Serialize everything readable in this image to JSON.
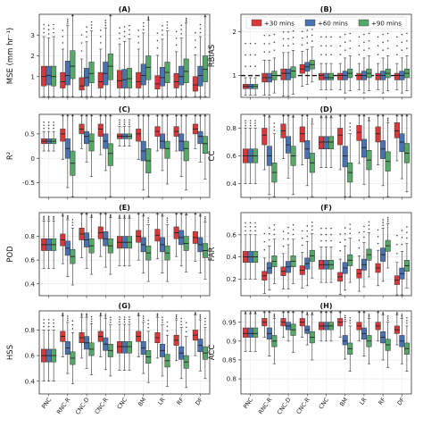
{
  "chart_data": {
    "type": "boxplot",
    "categories": [
      "PNC",
      "RNC-R",
      "CNC-D",
      "CNC-R",
      "CNC",
      "BM",
      "LR",
      "RF",
      "DF"
    ],
    "legend": {
      "entries": [
        "+30 mins",
        "+60 mins",
        "+90 mins"
      ],
      "colors": [
        "#d9383a",
        "#4a72b0",
        "#55a868"
      ],
      "placement": "top (panel B)"
    },
    "grid": true,
    "panels": [
      {
        "label": "(A)",
        "ylabel": "MSE (mm hr⁻¹)",
        "ylim": [
          0,
          4
        ],
        "yticks": [
          1,
          2,
          3
        ],
        "series": [
          {
            "name": "+30 mins",
            "medians": [
              1.0,
              0.75,
              0.55,
              0.75,
              0.8,
              0.75,
              0.65,
              0.75,
              0.6
            ],
            "q1": [
              0.55,
              0.45,
              0.35,
              0.45,
              0.45,
              0.45,
              0.4,
              0.45,
              0.3
            ],
            "q3": [
              1.5,
              1.2,
              0.95,
              1.2,
              1.3,
              1.2,
              1.05,
              1.15,
              1.0
            ]
          },
          {
            "name": "+60 mins",
            "medians": [
              1.05,
              1.05,
              0.95,
              1.15,
              0.85,
              1.05,
              0.95,
              1.0,
              1.05
            ],
            "q1": [
              0.6,
              0.6,
              0.55,
              0.6,
              0.45,
              0.6,
              0.55,
              0.6,
              0.55
            ],
            "q3": [
              1.5,
              1.75,
              1.4,
              1.7,
              1.35,
              1.6,
              1.45,
              1.5,
              1.5
            ]
          },
          {
            "name": "+90 mins",
            "medians": [
              1.0,
              1.5,
              1.15,
              1.5,
              0.9,
              1.45,
              1.2,
              1.25,
              1.35
            ],
            "q1": [
              0.55,
              0.9,
              0.7,
              0.85,
              0.45,
              0.85,
              0.7,
              0.7,
              0.75
            ],
            "q3": [
              1.5,
              2.25,
              1.7,
              2.1,
              1.4,
              2.0,
              1.7,
              1.85,
              2.0
            ]
          }
        ]
      },
      {
        "label": "(B)",
        "ylabel": "RBIAS",
        "ylim": [
          0.5,
          2.4
        ],
        "yticks": [
          1,
          2
        ],
        "reference_line": 1,
        "series": [
          {
            "name": "+30 mins",
            "medians": [
              0.75,
              0.95,
              1.05,
              1.15,
              1.0,
              1.0,
              1.0,
              1.0,
              1.0
            ],
            "q1": [
              0.7,
              0.85,
              0.9,
              1.05,
              0.9,
              0.9,
              0.9,
              0.9,
              0.9
            ],
            "q3": [
              0.8,
              1.05,
              1.15,
              1.25,
              1.05,
              1.05,
              1.05,
              1.05,
              1.05
            ]
          },
          {
            "name": "+60 mins",
            "medians": [
              0.75,
              0.95,
              1.05,
              1.2,
              0.95,
              1.0,
              1.0,
              1.0,
              1.0
            ],
            "q1": [
              0.7,
              0.85,
              0.9,
              1.1,
              0.9,
              0.9,
              0.9,
              0.9,
              0.9
            ],
            "q3": [
              0.8,
              1.05,
              1.15,
              1.3,
              1.05,
              1.1,
              1.1,
              1.1,
              1.1
            ]
          },
          {
            "name": "+90 mins",
            "medians": [
              0.75,
              1.0,
              1.1,
              1.25,
              0.95,
              1.05,
              1.05,
              1.05,
              1.05
            ],
            "q1": [
              0.7,
              0.9,
              0.95,
              1.15,
              0.9,
              0.95,
              0.95,
              0.95,
              0.95
            ],
            "q3": [
              0.8,
              1.1,
              1.2,
              1.35,
              1.05,
              1.15,
              1.15,
              1.15,
              1.15
            ]
          }
        ]
      },
      {
        "label": "(C)",
        "ylabel": "R²",
        "ylim": [
          -0.8,
          0.9
        ],
        "yticks": [
          -0.5,
          0.0,
          0.5
        ],
        "series": [
          {
            "name": "+30 mins",
            "medians": [
              0.35,
              0.5,
              0.6,
              0.6,
              0.45,
              0.5,
              0.55,
              0.55,
              0.6
            ],
            "q1": [
              0.3,
              0.35,
              0.5,
              0.45,
              0.4,
              0.35,
              0.45,
              0.45,
              0.5
            ],
            "q3": [
              0.4,
              0.6,
              0.7,
              0.7,
              0.5,
              0.6,
              0.65,
              0.65,
              0.7
            ]
          },
          {
            "name": "+60 mins",
            "medians": [
              0.35,
              0.2,
              0.45,
              0.35,
              0.45,
              0.15,
              0.35,
              0.35,
              0.45
            ],
            "q1": [
              0.3,
              0.0,
              0.3,
              0.2,
              0.4,
              -0.05,
              0.2,
              0.15,
              0.3
            ],
            "q3": [
              0.4,
              0.4,
              0.55,
              0.5,
              0.5,
              0.35,
              0.5,
              0.5,
              0.55
            ]
          },
          {
            "name": "+90 mins",
            "medians": [
              0.35,
              -0.1,
              0.35,
              0.1,
              0.45,
              -0.05,
              0.2,
              0.2,
              0.3
            ],
            "q1": [
              0.3,
              -0.35,
              0.15,
              -0.15,
              0.4,
              -0.3,
              0.0,
              -0.05,
              0.1
            ],
            "q3": [
              0.4,
              0.15,
              0.5,
              0.3,
              0.5,
              0.2,
              0.35,
              0.35,
              0.45
            ]
          }
        ]
      },
      {
        "label": "(D)",
        "ylabel": "CC",
        "ylim": [
          0.3,
          0.9
        ],
        "yticks": [
          0.4,
          0.6,
          0.8
        ],
        "series": [
          {
            "name": "+30 mins",
            "medians": [
              0.6,
              0.75,
              0.78,
              0.76,
              0.7,
              0.75,
              0.77,
              0.76,
              0.78
            ],
            "q1": [
              0.55,
              0.68,
              0.73,
              0.7,
              0.65,
              0.68,
              0.71,
              0.7,
              0.73
            ],
            "q3": [
              0.65,
              0.8,
              0.83,
              0.81,
              0.74,
              0.8,
              0.82,
              0.81,
              0.84
            ]
          },
          {
            "name": "+60 mins",
            "medians": [
              0.6,
              0.6,
              0.68,
              0.65,
              0.7,
              0.6,
              0.66,
              0.65,
              0.7
            ],
            "q1": [
              0.55,
              0.53,
              0.62,
              0.58,
              0.65,
              0.52,
              0.59,
              0.58,
              0.63
            ],
            "q3": [
              0.65,
              0.67,
              0.74,
              0.71,
              0.74,
              0.67,
              0.72,
              0.71,
              0.76
            ]
          },
          {
            "name": "+90 mins",
            "medians": [
              0.6,
              0.48,
              0.6,
              0.55,
              0.7,
              0.48,
              0.57,
              0.56,
              0.62
            ],
            "q1": [
              0.55,
              0.41,
              0.53,
              0.48,
              0.65,
              0.41,
              0.5,
              0.49,
              0.55
            ],
            "q3": [
              0.65,
              0.55,
              0.67,
              0.62,
              0.74,
              0.55,
              0.64,
              0.63,
              0.69
            ]
          }
        ]
      },
      {
        "label": "(E)",
        "ylabel": "POD",
        "ylim": [
          0.3,
          1.0
        ],
        "yticks": [
          0.4,
          0.6,
          0.8
        ],
        "series": [
          {
            "name": "+30 mins",
            "medians": [
              0.73,
              0.77,
              0.82,
              0.83,
              0.75,
              0.8,
              0.81,
              0.83,
              0.79
            ],
            "q1": [
              0.68,
              0.72,
              0.77,
              0.78,
              0.7,
              0.75,
              0.76,
              0.78,
              0.74
            ],
            "q3": [
              0.78,
              0.82,
              0.87,
              0.88,
              0.8,
              0.85,
              0.86,
              0.88,
              0.84
            ]
          },
          {
            "name": "+60 mins",
            "medians": [
              0.73,
              0.7,
              0.77,
              0.78,
              0.75,
              0.73,
              0.73,
              0.79,
              0.73
            ],
            "q1": [
              0.68,
              0.64,
              0.71,
              0.72,
              0.7,
              0.67,
              0.67,
              0.73,
              0.67
            ],
            "q3": [
              0.78,
              0.76,
              0.83,
              0.84,
              0.8,
              0.79,
              0.79,
              0.85,
              0.79
            ]
          },
          {
            "name": "+90 mins",
            "medians": [
              0.73,
              0.63,
              0.72,
              0.72,
              0.75,
              0.66,
              0.66,
              0.74,
              0.68
            ],
            "q1": [
              0.68,
              0.57,
              0.66,
              0.66,
              0.7,
              0.6,
              0.6,
              0.68,
              0.62
            ],
            "q3": [
              0.78,
              0.69,
              0.78,
              0.78,
              0.8,
              0.72,
              0.72,
              0.8,
              0.74
            ]
          }
        ]
      },
      {
        "label": "(F)",
        "ylabel": "FAR",
        "ylim": [
          0.05,
          0.8
        ],
        "yticks": [
          0.2,
          0.4,
          0.6
        ],
        "series": [
          {
            "name": "+30 mins",
            "medians": [
              0.4,
              0.23,
              0.27,
              0.28,
              0.33,
              0.22,
              0.25,
              0.3,
              0.19
            ],
            "q1": [
              0.35,
              0.19,
              0.23,
              0.24,
              0.29,
              0.18,
              0.21,
              0.26,
              0.15
            ],
            "q3": [
              0.45,
              0.27,
              0.31,
              0.32,
              0.37,
              0.26,
              0.29,
              0.34,
              0.23
            ]
          },
          {
            "name": "+60 mins",
            "medians": [
              0.4,
              0.3,
              0.31,
              0.34,
              0.33,
              0.3,
              0.33,
              0.42,
              0.25
            ],
            "q1": [
              0.35,
              0.25,
              0.26,
              0.29,
              0.29,
              0.25,
              0.28,
              0.36,
              0.2
            ],
            "q3": [
              0.45,
              0.35,
              0.36,
              0.39,
              0.37,
              0.35,
              0.38,
              0.48,
              0.3
            ]
          },
          {
            "name": "+90 mins",
            "medians": [
              0.4,
              0.36,
              0.36,
              0.41,
              0.33,
              0.37,
              0.42,
              0.5,
              0.32
            ],
            "q1": [
              0.35,
              0.31,
              0.31,
              0.36,
              0.29,
              0.32,
              0.37,
              0.45,
              0.27
            ],
            "q3": [
              0.45,
              0.41,
              0.41,
              0.46,
              0.37,
              0.42,
              0.47,
              0.55,
              0.37
            ]
          }
        ]
      },
      {
        "label": "(G)",
        "ylabel": "HSS",
        "ylim": [
          0.3,
          0.95
        ],
        "yticks": [
          0.4,
          0.6,
          0.8
        ],
        "series": [
          {
            "name": "+30 mins",
            "medians": [
              0.6,
              0.75,
              0.74,
              0.75,
              0.67,
              0.75,
              0.74,
              0.72,
              0.76
            ],
            "q1": [
              0.55,
              0.71,
              0.7,
              0.71,
              0.62,
              0.71,
              0.7,
              0.68,
              0.72
            ],
            "q3": [
              0.65,
              0.79,
              0.78,
              0.79,
              0.71,
              0.79,
              0.78,
              0.76,
              0.8
            ]
          },
          {
            "name": "+60 mins",
            "medians": [
              0.6,
              0.66,
              0.7,
              0.69,
              0.67,
              0.66,
              0.64,
              0.62,
              0.68
            ],
            "q1": [
              0.55,
              0.61,
              0.65,
              0.64,
              0.62,
              0.61,
              0.59,
              0.57,
              0.63
            ],
            "q3": [
              0.65,
              0.71,
              0.75,
              0.74,
              0.71,
              0.71,
              0.69,
              0.67,
              0.73
            ]
          },
          {
            "name": "+90 mins",
            "medians": [
              0.6,
              0.58,
              0.65,
              0.64,
              0.67,
              0.59,
              0.56,
              0.55,
              0.62
            ],
            "q1": [
              0.55,
              0.53,
              0.6,
              0.59,
              0.62,
              0.54,
              0.51,
              0.5,
              0.57
            ],
            "q3": [
              0.65,
              0.63,
              0.7,
              0.69,
              0.71,
              0.64,
              0.61,
              0.6,
              0.67
            ]
          }
        ]
      },
      {
        "label": "(H)",
        "ylabel": "ACC",
        "ylim": [
          0.76,
          0.98
        ],
        "yticks": [
          0.8,
          0.85,
          0.9,
          0.95
        ],
        "series": [
          {
            "name": "+30 mins",
            "medians": [
              0.92,
              0.95,
              0.95,
              0.95,
              0.94,
              0.95,
              0.94,
              0.94,
              0.93
            ],
            "q1": [
              0.91,
              0.94,
              0.94,
              0.94,
              0.93,
              0.94,
              0.93,
              0.93,
              0.92
            ],
            "q3": [
              0.935,
              0.96,
              0.96,
              0.96,
              0.95,
              0.96,
              0.95,
              0.95,
              0.94
            ]
          },
          {
            "name": "+60 mins",
            "medians": [
              0.92,
              0.92,
              0.94,
              0.93,
              0.94,
              0.9,
              0.92,
              0.91,
              0.9
            ],
            "q1": [
              0.91,
              0.905,
              0.93,
              0.92,
              0.93,
              0.89,
              0.905,
              0.895,
              0.885
            ],
            "q3": [
              0.935,
              0.935,
              0.95,
              0.94,
              0.95,
              0.915,
              0.935,
              0.925,
              0.915
            ]
          },
          {
            "name": "+90 mins",
            "medians": [
              0.92,
              0.9,
              0.93,
              0.91,
              0.94,
              0.88,
              0.9,
              0.89,
              0.88
            ],
            "q1": [
              0.91,
              0.885,
              0.915,
              0.895,
              0.93,
              0.865,
              0.885,
              0.875,
              0.865
            ],
            "q3": [
              0.935,
              0.915,
              0.945,
              0.925,
              0.95,
              0.895,
              0.915,
              0.905,
              0.895
            ]
          }
        ]
      }
    ]
  }
}
